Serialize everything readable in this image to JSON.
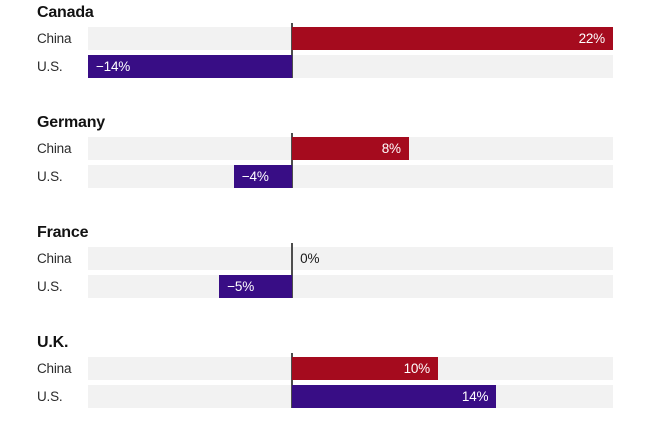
{
  "chart_data": {
    "type": "bar",
    "orientation": "horizontal",
    "unit": "%",
    "axis": {
      "min": -14,
      "max": 22,
      "zero_line": true,
      "grid": false
    },
    "legend": "none",
    "colors": {
      "china_bar": "#a50b1e",
      "us_bar": "#380d85",
      "track": "#f2f2f2",
      "zero_line": "#4d4d4d",
      "value_text": "#ffffff",
      "label_text": "#2b2b2b",
      "title_text": "#121212"
    },
    "groups": [
      {
        "title": "Canada",
        "rows": [
          {
            "label": "China",
            "series": "china",
            "value": 22,
            "display": "22%"
          },
          {
            "label": "U.S.",
            "series": "us",
            "value": -14,
            "display": "−14%"
          }
        ]
      },
      {
        "title": "Germany",
        "rows": [
          {
            "label": "China",
            "series": "china",
            "value": 8,
            "display": "8%"
          },
          {
            "label": "U.S.",
            "series": "us",
            "value": -4,
            "display": "−4%"
          }
        ]
      },
      {
        "title": "France",
        "rows": [
          {
            "label": "China",
            "series": "china",
            "value": 0,
            "display": "0%"
          },
          {
            "label": "U.S.",
            "series": "us",
            "value": -5,
            "display": "−5%"
          }
        ]
      },
      {
        "title": "U.K.",
        "rows": [
          {
            "label": "China",
            "series": "china",
            "value": 10,
            "display": "10%"
          },
          {
            "label": "U.S.",
            "series": "us",
            "value": 14,
            "display": "14%"
          }
        ]
      }
    ]
  }
}
